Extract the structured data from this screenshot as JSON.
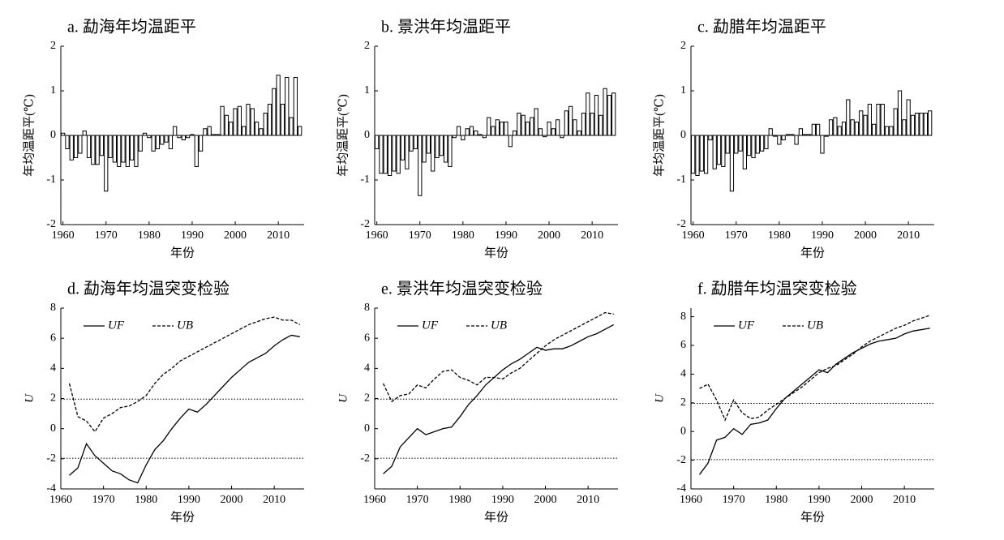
{
  "chart_data": [
    {
      "type": "bar",
      "title": "a. 勐海年均温距平",
      "xlabel": "年份",
      "ylabel": "年均温距平(℃)",
      "color": "#ffffff",
      "edgecolor": "#000000",
      "x": [
        1960,
        1961,
        1962,
        1963,
        1964,
        1965,
        1966,
        1967,
        1968,
        1969,
        1970,
        1971,
        1972,
        1973,
        1974,
        1975,
        1976,
        1977,
        1978,
        1979,
        1980,
        1981,
        1982,
        1983,
        1984,
        1985,
        1986,
        1987,
        1988,
        1989,
        1990,
        1991,
        1992,
        1993,
        1994,
        1995,
        1996,
        1997,
        1998,
        1999,
        2000,
        2001,
        2002,
        2003,
        2004,
        2005,
        2006,
        2007,
        2008,
        2009,
        2010,
        2011,
        2012,
        2013,
        2014,
        2015
      ],
      "values": [
        0.05,
        -0.3,
        -0.55,
        -0.5,
        -0.4,
        0.1,
        -0.5,
        -0.65,
        -0.65,
        -0.45,
        -1.25,
        -0.5,
        -0.6,
        -0.7,
        -0.6,
        -0.7,
        -0.55,
        -0.7,
        -0.35,
        0.05,
        -0.05,
        -0.35,
        -0.3,
        -0.2,
        -0.15,
        -0.3,
        0.2,
        -0.05,
        -0.1,
        -0.05,
        0.02,
        -0.7,
        -0.35,
        0.15,
        0.2,
        0.02,
        0.02,
        0.65,
        0.45,
        0.3,
        0.6,
        0.65,
        0.2,
        0.7,
        0.6,
        0.3,
        0.15,
        0.5,
        0.7,
        1.05,
        1.35,
        0.7,
        1.3,
        0.4,
        1.3,
        0.2
      ],
      "xlim": [
        1959.5,
        2016
      ],
      "xticks": [
        1960,
        1970,
        1980,
        1990,
        2000,
        2010
      ],
      "ylim": [
        -2,
        2
      ],
      "yticks": [
        -2,
        -1,
        0,
        1,
        2
      ]
    },
    {
      "type": "bar",
      "title": "b. 景洪年均温距平",
      "xlabel": "年份",
      "ylabel": "年均温距平(℃)",
      "color": "#ffffff",
      "edgecolor": "#000000",
      "x": [
        1960,
        1961,
        1962,
        1963,
        1964,
        1965,
        1966,
        1967,
        1968,
        1969,
        1970,
        1971,
        1972,
        1973,
        1974,
        1975,
        1976,
        1977,
        1978,
        1979,
        1980,
        1981,
        1982,
        1983,
        1984,
        1985,
        1986,
        1987,
        1988,
        1989,
        1990,
        1991,
        1992,
        1993,
        1994,
        1995,
        1996,
        1997,
        1998,
        1999,
        2000,
        2001,
        2002,
        2003,
        2004,
        2005,
        2006,
        2007,
        2008,
        2009,
        2010,
        2011,
        2012,
        2013,
        2014,
        2015
      ],
      "values": [
        -0.3,
        -0.85,
        -0.85,
        -0.9,
        -0.8,
        -0.85,
        -0.55,
        -0.75,
        -0.35,
        -0.3,
        -1.35,
        -0.6,
        -0.4,
        -0.8,
        -0.5,
        -0.45,
        -0.6,
        -0.7,
        -0.05,
        0.2,
        -0.1,
        0.15,
        0.2,
        0.1,
        0.02,
        -0.05,
        0.4,
        0.2,
        0.35,
        0.3,
        0.3,
        -0.25,
        0.1,
        0.5,
        0.45,
        0.3,
        0.4,
        0.6,
        0.15,
        -0.03,
        0.3,
        0.15,
        0.35,
        -0.05,
        0.55,
        0.65,
        0.35,
        0.1,
        0.5,
        0.95,
        0.5,
        0.9,
        0.45,
        1.05,
        0.9,
        0.95
      ],
      "xlim": [
        1959.5,
        2016
      ],
      "xticks": [
        1960,
        1970,
        1980,
        1990,
        2000,
        2010
      ],
      "ylim": [
        -2,
        2
      ],
      "yticks": [
        -2,
        -1,
        0,
        1,
        2
      ]
    },
    {
      "type": "bar",
      "title": "c. 勐腊年均温距平",
      "xlabel": "年份",
      "ylabel": "年均温距平(℃)",
      "color": "#ffffff",
      "edgecolor": "#000000",
      "x": [
        1960,
        1961,
        1962,
        1963,
        1964,
        1965,
        1966,
        1967,
        1968,
        1969,
        1970,
        1971,
        1972,
        1973,
        1974,
        1975,
        1976,
        1977,
        1978,
        1979,
        1980,
        1981,
        1982,
        1983,
        1984,
        1985,
        1986,
        1987,
        1988,
        1989,
        1990,
        1991,
        1992,
        1993,
        1994,
        1995,
        1996,
        1997,
        1998,
        1999,
        2000,
        2001,
        2002,
        2003,
        2004,
        2005,
        2006,
        2007,
        2008,
        2009,
        2010,
        2011,
        2012,
        2013,
        2014,
        2015
      ],
      "values": [
        -0.85,
        -0.9,
        -0.8,
        -0.85,
        -0.1,
        -0.75,
        -0.65,
        -0.7,
        -0.4,
        -1.25,
        -0.4,
        -0.35,
        -0.75,
        -0.45,
        -0.5,
        -0.4,
        -0.35,
        -0.3,
        0.15,
        -0.02,
        -0.2,
        -0.1,
        0.02,
        0.02,
        -0.2,
        0.15,
        0.02,
        0.02,
        0.25,
        0.25,
        -0.4,
        -0.02,
        0.35,
        0.4,
        0.2,
        0.3,
        0.8,
        0.35,
        0.3,
        0.55,
        0.45,
        0.7,
        0.25,
        0.7,
        0.7,
        0.2,
        0.2,
        0.6,
        1.0,
        0.35,
        0.8,
        0.45,
        0.5,
        0.5,
        0.5,
        0.55
      ],
      "xlim": [
        1959.5,
        2016
      ],
      "xticks": [
        1960,
        1970,
        1980,
        1990,
        2000,
        2010
      ],
      "ylim": [
        -2,
        2
      ],
      "yticks": [
        -2,
        -1,
        0,
        1,
        2
      ]
    },
    {
      "type": "line",
      "title": "d. 勐海年均温突变检验",
      "xlabel": "年份",
      "ylabel": "U",
      "ref_lines": [
        1.96,
        -1.96
      ],
      "x": [
        1962,
        1964,
        1966,
        1968,
        1970,
        1972,
        1974,
        1976,
        1978,
        1980,
        1982,
        1984,
        1986,
        1988,
        1990,
        1992,
        1994,
        1996,
        1998,
        2000,
        2002,
        2004,
        2006,
        2008,
        2010,
        2012,
        2014,
        2016
      ],
      "series": [
        {
          "name": "UF",
          "color": "#000000",
          "dashed": false,
          "values": [
            -3.1,
            -2.6,
            -1.0,
            -1.8,
            -2.3,
            -2.8,
            -3.0,
            -3.4,
            -3.6,
            -2.4,
            -1.4,
            -0.8,
            0.0,
            0.7,
            1.3,
            1.1,
            1.6,
            2.2,
            2.8,
            3.4,
            3.9,
            4.4,
            4.7,
            5.0,
            5.5,
            5.9,
            6.2,
            6.1
          ]
        },
        {
          "name": "UB",
          "color": "#000000",
          "dashed": true,
          "values": [
            3.0,
            0.8,
            0.5,
            -0.2,
            0.7,
            1.0,
            1.4,
            1.5,
            1.8,
            2.2,
            3.0,
            3.6,
            4.0,
            4.5,
            4.8,
            5.1,
            5.4,
            5.7,
            6.0,
            6.3,
            6.6,
            6.9,
            7.1,
            7.3,
            7.4,
            7.2,
            7.2,
            6.9
          ]
        }
      ],
      "xlim": [
        1960,
        2017
      ],
      "xticks": [
        1960,
        1970,
        1980,
        1990,
        2000,
        2010
      ],
      "ylim": [
        -4,
        8
      ],
      "yticks": [
        -4,
        -2,
        0,
        2,
        4,
        6,
        8
      ]
    },
    {
      "type": "line",
      "title": "e. 景洪年均温突变检验",
      "xlabel": "年份",
      "ylabel": "U",
      "ref_lines": [
        1.96,
        -1.96
      ],
      "x": [
        1962,
        1964,
        1966,
        1968,
        1970,
        1972,
        1974,
        1976,
        1978,
        1980,
        1982,
        1984,
        1986,
        1988,
        1990,
        1992,
        1994,
        1996,
        1998,
        2000,
        2002,
        2004,
        2006,
        2008,
        2010,
        2012,
        2014,
        2016
      ],
      "series": [
        {
          "name": "UF",
          "color": "#000000",
          "dashed": false,
          "values": [
            -3.0,
            -2.5,
            -1.2,
            -0.6,
            0.0,
            -0.4,
            -0.2,
            0.0,
            0.1,
            0.8,
            1.6,
            2.2,
            2.9,
            3.4,
            3.9,
            4.3,
            4.6,
            5.0,
            5.4,
            5.2,
            5.3,
            5.3,
            5.5,
            5.8,
            6.1,
            6.3,
            6.6,
            6.9
          ]
        },
        {
          "name": "UB",
          "color": "#000000",
          "dashed": true,
          "values": [
            3.0,
            1.8,
            2.2,
            2.3,
            2.9,
            2.7,
            3.3,
            3.8,
            3.9,
            3.4,
            3.2,
            2.9,
            3.4,
            3.4,
            3.3,
            3.7,
            4.0,
            4.5,
            5.0,
            5.5,
            5.9,
            6.2,
            6.5,
            6.8,
            7.1,
            7.4,
            7.7,
            7.6
          ]
        }
      ],
      "xlim": [
        1960,
        2017
      ],
      "xticks": [
        1960,
        1970,
        1980,
        1990,
        2000,
        2010
      ],
      "ylim": [
        -4,
        8
      ],
      "yticks": [
        -2,
        0,
        2,
        4,
        6,
        8
      ]
    },
    {
      "type": "line",
      "title": "f. 勐腊年均温突变检验",
      "xlabel": "年份",
      "ylabel": "U",
      "ref_lines": [
        1.96,
        -1.96
      ],
      "x": [
        1962,
        1964,
        1966,
        1968,
        1970,
        1972,
        1974,
        1976,
        1978,
        1980,
        1982,
        1984,
        1986,
        1988,
        1990,
        1992,
        1994,
        1996,
        1998,
        2000,
        2002,
        2004,
        2006,
        2008,
        2010,
        2012,
        2014,
        2016
      ],
      "series": [
        {
          "name": "UF",
          "color": "#000000",
          "dashed": false,
          "values": [
            -3.0,
            -2.2,
            -0.6,
            -0.4,
            0.2,
            -0.2,
            0.5,
            0.6,
            0.8,
            1.6,
            2.3,
            2.8,
            3.3,
            3.8,
            4.3,
            4.1,
            4.7,
            5.1,
            5.5,
            5.8,
            6.1,
            6.3,
            6.4,
            6.5,
            6.8,
            7.0,
            7.1,
            7.2
          ]
        },
        {
          "name": "UB",
          "color": "#000000",
          "dashed": true,
          "values": [
            3.0,
            3.3,
            2.2,
            0.8,
            2.2,
            1.3,
            0.9,
            1.0,
            1.5,
            1.9,
            2.3,
            2.7,
            3.1,
            3.6,
            4.1,
            4.4,
            4.6,
            5.0,
            5.4,
            5.9,
            6.3,
            6.6,
            6.9,
            7.2,
            7.4,
            7.7,
            7.9,
            8.1
          ]
        }
      ],
      "xlim": [
        1960,
        2017
      ],
      "xticks": [
        1960,
        1970,
        1980,
        1990,
        2000,
        2010
      ],
      "ylim": [
        -4,
        8.6
      ],
      "yticks": [
        -4,
        -2,
        0,
        2,
        4,
        6,
        8
      ]
    }
  ]
}
